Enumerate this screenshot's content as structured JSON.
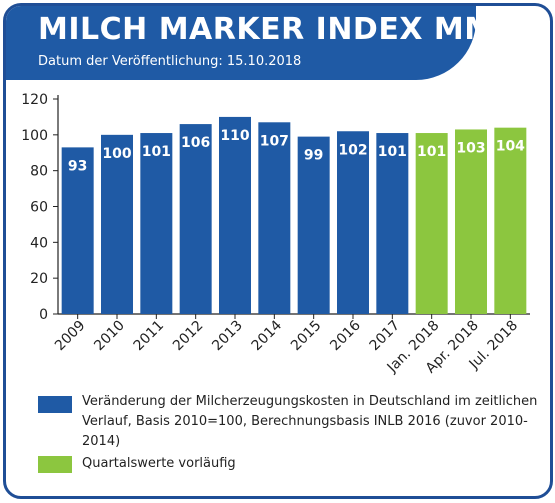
{
  "header": {
    "title": "MILCH MARKER INDEX MMI",
    "subtitle": "Datum der Veröffentlichung: 15.10.2018"
  },
  "colors": {
    "frame": "#1f4e96",
    "header": "#1f5aa5",
    "bar_annual": "#1f5aa5",
    "bar_quarterly": "#8cc63f"
  },
  "chart_data": {
    "type": "bar",
    "categories": [
      "2009",
      "2010",
      "2011",
      "2012",
      "2013",
      "2014",
      "2015",
      "2016",
      "2017",
      "Jan. 2018",
      "Apr. 2018",
      "Jul. 2018"
    ],
    "values": [
      93,
      100,
      101,
      106,
      110,
      107,
      99,
      102,
      101,
      101,
      103,
      104
    ],
    "groups": [
      "annual",
      "annual",
      "annual",
      "annual",
      "annual",
      "annual",
      "annual",
      "annual",
      "annual",
      "quarterly",
      "quarterly",
      "quarterly"
    ],
    "ylim": [
      0,
      120
    ],
    "yticks": [
      0,
      20,
      40,
      60,
      80,
      100,
      120
    ],
    "grid": false,
    "legend": "bottom",
    "legend_entries": [
      {
        "group": "annual",
        "label": "Veränderung der Milcherzeugungskosten in Deutschland im zeitlichen Verlauf, Basis 2010=100, Berechnungsbasis INLB 2016 (zuvor 2010-2014)"
      },
      {
        "group": "quarterly",
        "label": "Quartalswerte vorläufig"
      }
    ]
  }
}
